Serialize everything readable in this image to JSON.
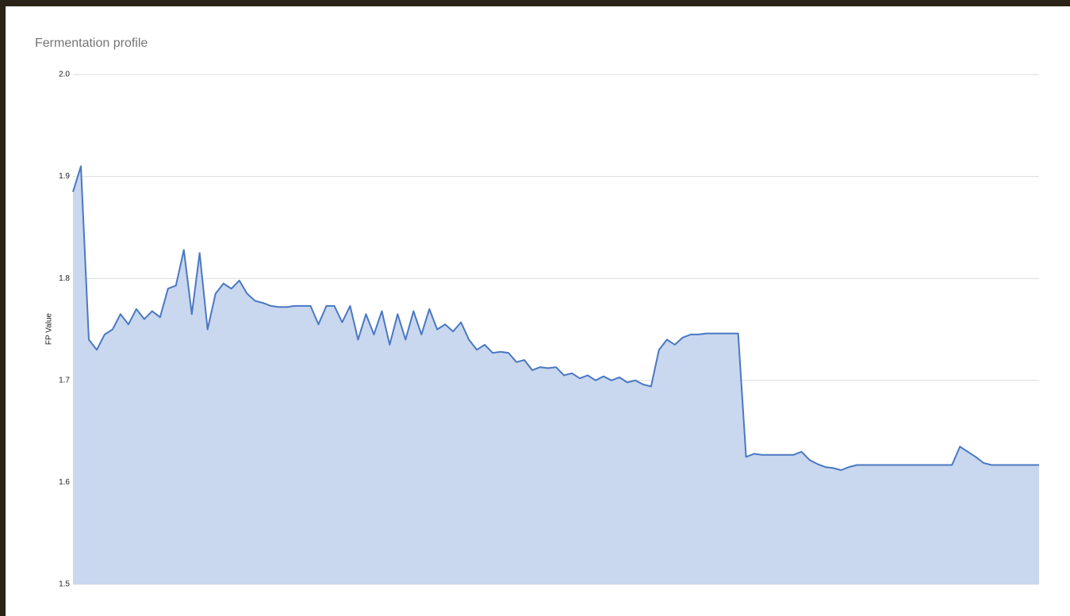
{
  "chart_data": {
    "type": "area",
    "title": "Fermentation profile",
    "y_label": "FP Value",
    "values": [
      1.885,
      1.91,
      1.74,
      1.73,
      1.745,
      1.75,
      1.765,
      1.755,
      1.77,
      1.76,
      1.768,
      1.762,
      1.79,
      1.793,
      1.828,
      1.765,
      1.825,
      1.75,
      1.785,
      1.795,
      1.79,
      1.798,
      1.785,
      1.778,
      1.776,
      1.773,
      1.772,
      1.772,
      1.773,
      1.773,
      1.773,
      1.755,
      1.773,
      1.773,
      1.757,
      1.773,
      1.74,
      1.765,
      1.745,
      1.768,
      1.735,
      1.765,
      1.74,
      1.768,
      1.745,
      1.77,
      1.75,
      1.755,
      1.748,
      1.757,
      1.74,
      1.73,
      1.735,
      1.727,
      1.728,
      1.727,
      1.718,
      1.72,
      1.71,
      1.713,
      1.712,
      1.713,
      1.705,
      1.707,
      1.702,
      1.705,
      1.7,
      1.704,
      1.7,
      1.703,
      1.698,
      1.7,
      1.696,
      1.694,
      1.73,
      1.74,
      1.735,
      1.742,
      1.745,
      1.745,
      1.746,
      1.746,
      1.746,
      1.746,
      1.746,
      1.625,
      1.628,
      1.627,
      1.627,
      1.627,
      1.627,
      1.627,
      1.63,
      1.622,
      1.618,
      1.615,
      1.614,
      1.612,
      1.615,
      1.617,
      1.617,
      1.617,
      1.617,
      1.617,
      1.617,
      1.617,
      1.617,
      1.617,
      1.617,
      1.617,
      1.617,
      1.617,
      1.635,
      1.63,
      1.625,
      1.619,
      1.617,
      1.617,
      1.617,
      1.617,
      1.617,
      1.617,
      1.617
    ],
    "color": "#4a78c2",
    "fill": "#c9d7ef",
    "ylim": [
      1.5,
      2.0
    ],
    "yticks": [
      1.5,
      1.6,
      1.7,
      1.8,
      1.9,
      {
        "value": 2.0,
        "label": "2.0"
      }
    ],
    "grid": true
  }
}
